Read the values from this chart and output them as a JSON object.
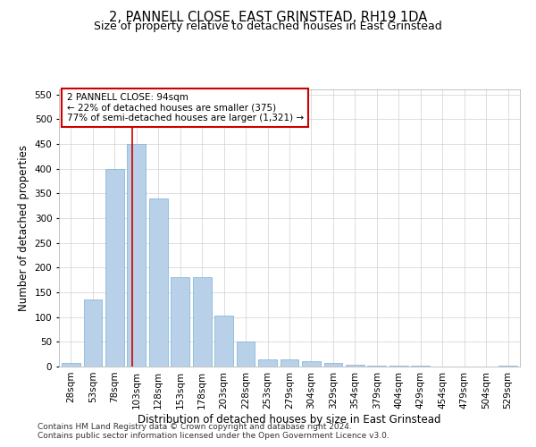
{
  "title": "2, PANNELL CLOSE, EAST GRINSTEAD, RH19 1DA",
  "subtitle": "Size of property relative to detached houses in East Grinstead",
  "xlabel": "Distribution of detached houses by size in East Grinstead",
  "ylabel": "Number of detached properties",
  "footnote1": "Contains HM Land Registry data © Crown copyright and database right 2024.",
  "footnote2": "Contains public sector information licensed under the Open Government Licence v3.0.",
  "categories": [
    "28sqm",
    "53sqm",
    "78sqm",
    "103sqm",
    "128sqm",
    "153sqm",
    "178sqm",
    "203sqm",
    "228sqm",
    "253sqm",
    "279sqm",
    "304sqm",
    "329sqm",
    "354sqm",
    "379sqm",
    "404sqm",
    "429sqm",
    "454sqm",
    "479sqm",
    "504sqm",
    "529sqm"
  ],
  "values": [
    8,
    135,
    400,
    450,
    340,
    180,
    180,
    103,
    50,
    15,
    15,
    10,
    8,
    3,
    2,
    2,
    2,
    0,
    0,
    0,
    2
  ],
  "bar_color": "#b8d0e8",
  "bar_edge_color": "#7aafd4",
  "property_line_x": 2.82,
  "property_line_color": "#cc0000",
  "annotation_line1": "2 PANNELL CLOSE: 94sqm",
  "annotation_line2": "← 22% of detached houses are smaller (375)",
  "annotation_line3": "77% of semi-detached houses are larger (1,321) →",
  "annotation_box_color": "#ffffff",
  "annotation_box_edge_color": "#cc0000",
  "ylim": [
    0,
    560
  ],
  "yticks": [
    0,
    50,
    100,
    150,
    200,
    250,
    300,
    350,
    400,
    450,
    500,
    550
  ],
  "title_fontsize": 10.5,
  "subtitle_fontsize": 9,
  "xlabel_fontsize": 8.5,
  "ylabel_fontsize": 8.5,
  "tick_fontsize": 7.5,
  "annotation_fontsize": 7.5,
  "footnote_fontsize": 6.5,
  "background_color": "#ffffff",
  "grid_color": "#d0d0d0"
}
